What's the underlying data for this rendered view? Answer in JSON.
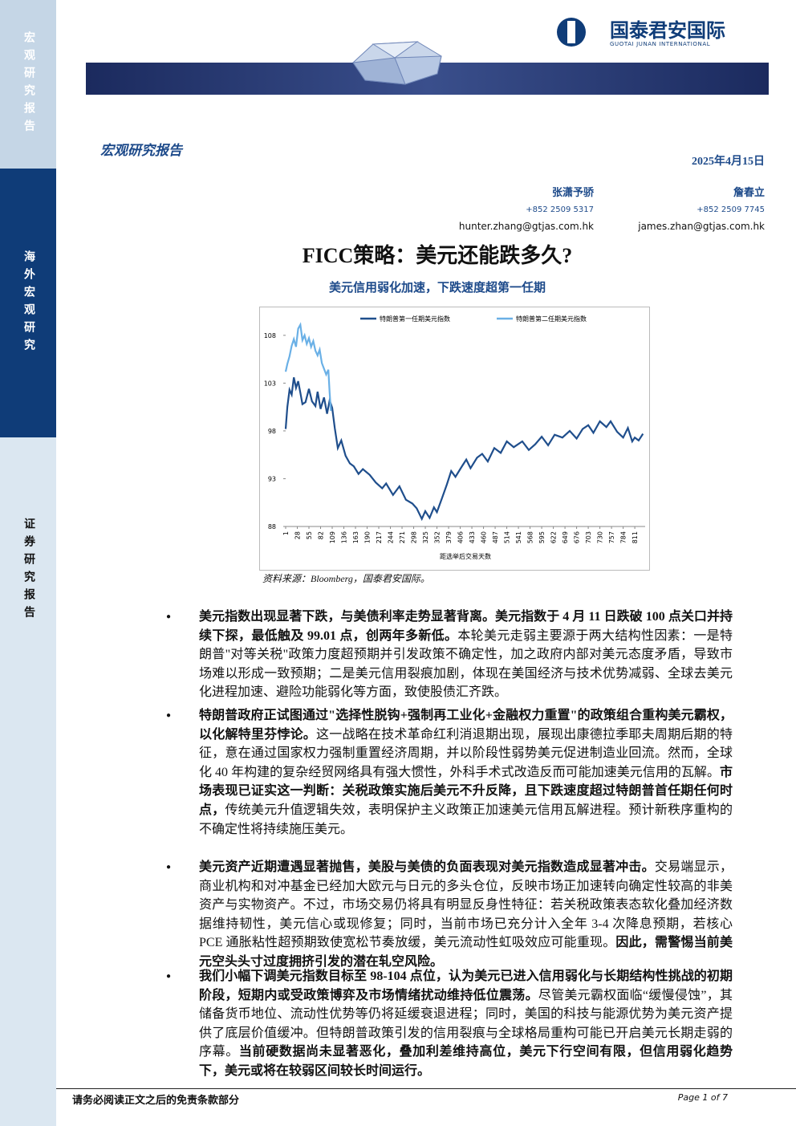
{
  "header": {
    "logo_cn": "国泰君安国际",
    "logo_en": "GUOTAI JUNAN INTERNATIONAL"
  },
  "sidebar": [
    "宏观研究报告",
    "海外宏观研究",
    "证券研究报告"
  ],
  "report_type": "宏观研究报告",
  "date": "2025年4月15日",
  "authors": [
    {
      "name": "张潇予骄",
      "phone": "+852 2509 5317",
      "email": "hunter.zhang@gtjas.com.hk"
    },
    {
      "name": "詹春立",
      "phone": "+852 2509 7745",
      "email": "james.zhan@gtjas.com.hk"
    }
  ],
  "title": "FICC策略：美元还能跌多久?",
  "subtitle": "美元信用弱化加速，下跌速度超第一任期",
  "chart_data": {
    "type": "line",
    "x_label": "距选举后交易天数",
    "xlim": [
      1,
      835
    ],
    "xticks": [
      1,
      28,
      55,
      82,
      109,
      136,
      163,
      190,
      217,
      244,
      271,
      298,
      325,
      352,
      379,
      406,
      433,
      460,
      487,
      514,
      541,
      568,
      595,
      622,
      649,
      676,
      703,
      730,
      757,
      784,
      811
    ],
    "ylim": [
      88,
      110
    ],
    "yticks": [
      88,
      93,
      98,
      103,
      108
    ],
    "series": [
      {
        "name": "特朗普第一任期美元指数",
        "color": "#1f4e8c",
        "x": [
          1,
          5,
          10,
          15,
          20,
          25,
          30,
          35,
          40,
          47,
          55,
          62,
          70,
          75,
          82,
          90,
          97,
          103,
          109,
          115,
          122,
          130,
          140,
          150,
          159,
          170,
          180,
          196,
          210,
          225,
          234,
          250,
          265,
          280,
          295,
          305,
          317,
          325,
          335,
          345,
          352,
          364,
          375,
          385,
          395,
          410,
          420,
          430,
          445,
          457,
          470,
          485,
          500,
          514,
          530,
          550,
          565,
          580,
          595,
          610,
          625,
          643,
          660,
          676,
          690,
          703,
          715,
          730,
          745,
          755,
          770,
          784,
          795,
          805,
          811,
          820,
          830
        ],
        "values": [
          98.2,
          100.5,
          102.3,
          101.8,
          103.6,
          102.5,
          103.2,
          102.0,
          100.8,
          101.0,
          102.4,
          101.1,
          100.6,
          102.1,
          100.3,
          101.5,
          99.8,
          101.2,
          100.4,
          98.3,
          96.2,
          97.0,
          95.4,
          94.6,
          94.3,
          93.5,
          94.0,
          93.4,
          92.6,
          92.0,
          92.5,
          91.3,
          92.2,
          90.8,
          90.4,
          89.9,
          88.8,
          89.6,
          88.9,
          90.0,
          89.5,
          91.0,
          92.4,
          93.8,
          93.2,
          94.3,
          95.0,
          94.1,
          95.2,
          95.6,
          94.8,
          96.2,
          95.7,
          96.9,
          96.3,
          96.9,
          96.0,
          96.6,
          97.4,
          96.5,
          97.6,
          97.3,
          98.0,
          97.2,
          98.2,
          98.6,
          97.8,
          99.0,
          98.4,
          99.0,
          97.9,
          97.3,
          98.3,
          96.9,
          97.3,
          97.0,
          97.7
        ]
      },
      {
        "name": "特朗普第二任期美元指数",
        "color": "#6ab0e6",
        "x": [
          1,
          5,
          10,
          15,
          20,
          25,
          30,
          35,
          40,
          45,
          50,
          55,
          60,
          65,
          70,
          75,
          80,
          85,
          90,
          95,
          100,
          103,
          106
        ],
        "values": [
          104.2,
          105.0,
          105.8,
          106.9,
          107.6,
          106.8,
          108.7,
          109.1,
          107.5,
          108.0,
          107.1,
          107.7,
          106.8,
          107.4,
          106.4,
          105.9,
          106.5,
          105.1,
          104.5,
          103.9,
          104.4,
          102.0,
          100.1
        ]
      }
    ]
  },
  "source": "资料来源：Bloomberg，国泰君安国际。",
  "bullets": [
    {
      "segments": [
        {
          "text": "美元指数出现显著下跌，与美债利率走势显著背离。美元指数于 4 月 11 日跌破 100 点关口并持续下探，最低触及 99.01 点，创两年多新低。",
          "bold": true
        },
        {
          "text": "本轮美元走弱主要源于两大结构性因素：一是特朗普\"对等关税\"政策力度超预期并引发政策不确定性，加之政府内部对美元态度矛盾，导致市场难以形成一致预期；二是美元信用裂痕加剧，体现在美国经济与技术优势减弱、全球去美元化进程加速、避险功能弱化等方面，致使股债汇齐跌。",
          "bold": false
        }
      ]
    },
    {
      "segments": [
        {
          "text": "特朗普政府正试图通过\"选择性脱钩+强制再工业化+金融权力重置\"的政策组合重构美元霸权，以化解特里芬悖论。",
          "bold": true
        },
        {
          "text": "这一战略在技术革命红利消退期出现，展现出康德拉季耶夫周期后期的特征，意在通过国家权力强制重置经济周期，并以阶段性弱势美元促进制造业回流。然而，全球化 40 年构建的复杂经贸网络具有强大惯性，外科手术式改造反而可能加速美元信用的瓦解。",
          "bold": false
        },
        {
          "text": "市场表现已证实这一判断：关税政策实施后美元不升反降，且下跌速度超过特朗普首任期任何时点，",
          "bold": true
        },
        {
          "text": "传统美元升值逻辑失效，表明保护主义政策正加速美元信用瓦解进程。预计新秩序重构的不确定性将持续施压美元。",
          "bold": false
        }
      ]
    },
    {
      "segments": [
        {
          "text": "美元资产近期遭遇显著抛售，美股与美债的负面表现对美元指数造成显著冲击。",
          "bold": true
        },
        {
          "text": "交易端显示，商业机构和对冲基金已经加大欧元与日元的多头仓位，反映市场正加速转向确定性较高的非美资产与实物资产。不过，市场交易仍将具有明显反身性特征：若关税政策表态软化叠加经济数据维持韧性，美元信心或现修复；同时，当前市场已充分计入全年 3-4 次降息预期，若核心 PCE 通胀粘性超预期致使宽松节奏放缓，美元流动性虹吸效应可能重现。",
          "bold": false
        },
        {
          "text": "因此，需警惕当前美元空头头寸过度拥挤引发的潜在轧空风险。",
          "bold": true
        }
      ]
    },
    {
      "segments": [
        {
          "text": "我们小幅下调美元指数目标至 98-104 点位，认为美元已进入信用弱化与长期结构性挑战的初期阶段，短期内或受政策博弈及市场情绪扰动维持低位震荡。",
          "bold": true
        },
        {
          "text": "尽管美元霸权面临“缓慢侵蚀”，其储备货币地位、流动性优势等仍将延缓衰退进程；同时，美国的科技与能源优势为美元资产提供了底层价值缓冲。但特朗普政策引发的信用裂痕与全球格局重构可能已开启美元长期走弱的序幕。",
          "bold": false
        },
        {
          "text": "当前硬数据尚未显著恶化，叠加利差维持高位，美元下行空间有限，但信用弱化趋势下，美元或将在较弱区间较长时间运行。",
          "bold": true
        }
      ]
    }
  ],
  "footer": {
    "disclaimer": "请务必阅读正文之后的免责条款部分",
    "page": "Page 1 of 7"
  }
}
